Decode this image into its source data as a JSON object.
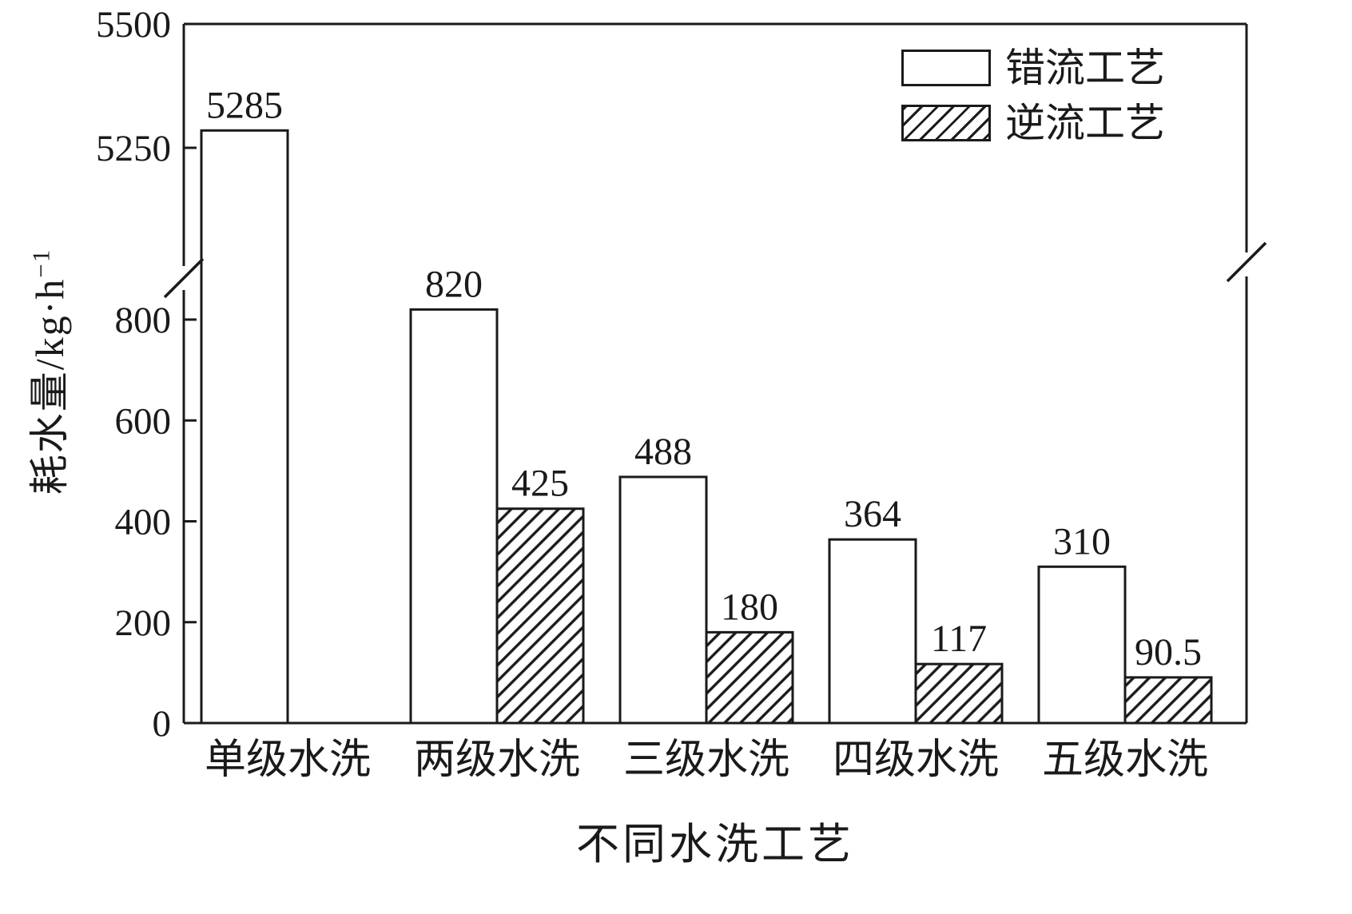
{
  "chart_data": {
    "type": "bar",
    "title": "",
    "xlabel": "不同水洗工艺",
    "ylabel": "耗水量/kg·h⁻¹",
    "ylabel_base": "耗水量/kg·h",
    "ylabel_sup": "−1",
    "categories": [
      "单级水洗",
      "两级水洗",
      "三级水洗",
      "四级水洗",
      "五级水洗"
    ],
    "series": [
      {
        "name": "错流工艺",
        "pattern": "solid",
        "values": [
          5285,
          820,
          488,
          364,
          310
        ],
        "labels": [
          "5285",
          "820",
          "488",
          "364",
          "310"
        ]
      },
      {
        "name": "逆流工艺",
        "pattern": "hatch",
        "values": [
          null,
          425,
          180,
          117,
          90.5
        ],
        "labels": [
          "",
          "425",
          "180",
          "117",
          "90.5"
        ]
      }
    ],
    "axis_break": true,
    "y_ticks_lower": [
      0,
      200,
      400,
      600,
      800
    ],
    "y_ticks_upper": [
      5250,
      5500
    ],
    "ylim_lower": [
      0,
      800
    ],
    "ylim_upper": [
      5250,
      5500
    ],
    "grid": false,
    "value_labels_shown": true,
    "legend_position": "top-right",
    "colors": {
      "stroke": "#1a1a1a",
      "bar_fill": "#ffffff",
      "background": "#ffffff"
    }
  },
  "legend": {
    "items": [
      {
        "label": "错流工艺",
        "swatch": "solid"
      },
      {
        "label": "逆流工艺",
        "swatch": "hatch"
      }
    ]
  }
}
